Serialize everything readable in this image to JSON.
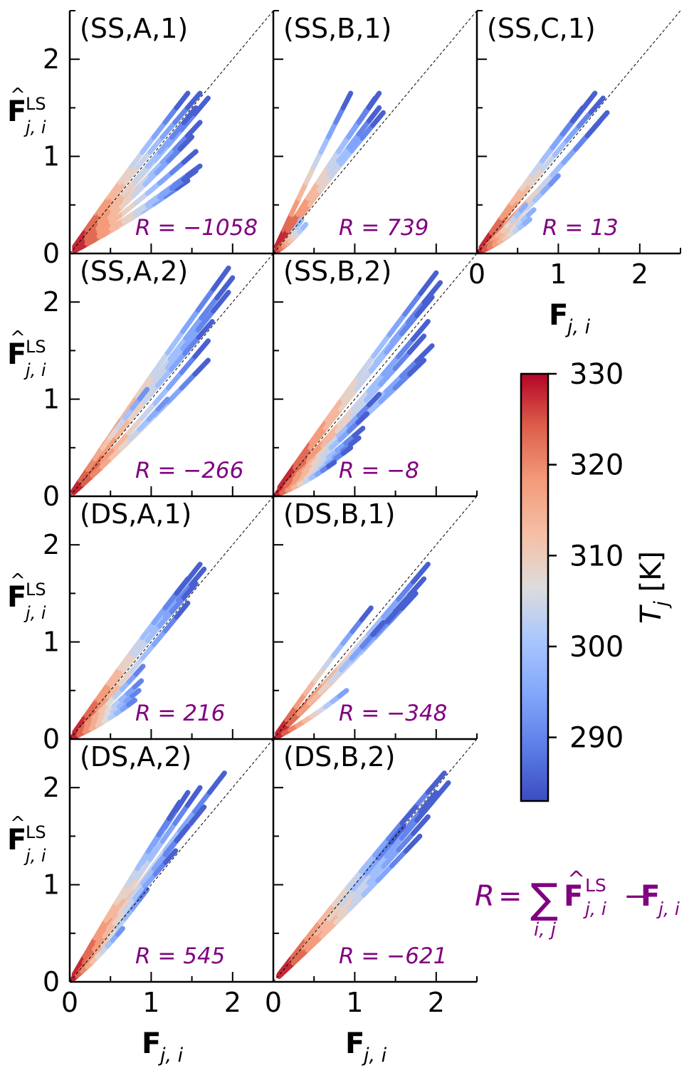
{
  "figure": {
    "x_axis_label": "F",
    "x_axis_label_sub": "j, i",
    "y_axis_label": "F",
    "y_axis_label_sup": "LS",
    "y_axis_label_sub": "j, i",
    "formula": {
      "lhs": "R",
      "eq": "=",
      "sum": "∑",
      "sum_sub": "i, j",
      "term1": "F",
      "term1_sup": "LS",
      "term1_sub": "j, i",
      "minus": "−",
      "term2": "F",
      "term2_sub": "j, i"
    },
    "colors": {
      "annotation": "#800080",
      "cold": "#3b4cc0",
      "neutral": "#dddddd",
      "hot": "#b40426"
    }
  },
  "chart_data": {
    "type": "scatter",
    "xlim": [
      0,
      2.5
    ],
    "ylim": [
      0,
      2.5
    ],
    "x_ticks": [
      0,
      1,
      2
    ],
    "y_ticks": [
      0,
      1,
      2
    ],
    "reference_line": "y = x",
    "grid": false,
    "panels": [
      {
        "id": "SS-A-1",
        "label": "(SS,A,1)",
        "r_label": "R = −1058",
        "R": -1058,
        "x_tick_labels": false,
        "rays": [
          [
            1.45,
            1.65,
            1
          ],
          [
            1.6,
            1.65,
            1
          ],
          [
            1.7,
            1.6,
            1
          ],
          [
            1.55,
            1.5,
            1
          ],
          [
            1.6,
            1.35,
            1
          ],
          [
            1.5,
            1.2,
            1
          ],
          [
            1.55,
            1.05,
            1
          ],
          [
            1.6,
            0.9,
            1
          ],
          [
            1.45,
            0.75,
            1
          ],
          [
            1.55,
            0.85,
            1
          ]
        ]
      },
      {
        "id": "SS-B-1",
        "label": "(SS,B,1)",
        "r_label": "R = 739",
        "R": 739,
        "x_tick_labels": false,
        "rays": [
          [
            0.95,
            1.65,
            1
          ],
          [
            1.25,
            1.6,
            1
          ],
          [
            1.3,
            1.5,
            1
          ],
          [
            1.2,
            1.3,
            1
          ],
          [
            1.35,
            1.45,
            1
          ],
          [
            1.3,
            1.65,
            1
          ],
          [
            0.35,
            0.35,
            0.7
          ],
          [
            0.4,
            0.3,
            0.7
          ]
        ]
      },
      {
        "id": "SS-C-1",
        "label": "(SS,C,1)",
        "r_label": "R = 13",
        "R": 13,
        "x_tick_labels": true,
        "rays": [
          [
            1.45,
            1.65,
            1
          ],
          [
            1.55,
            1.6,
            1
          ],
          [
            1.3,
            1.5,
            1
          ],
          [
            1.6,
            1.45,
            1
          ],
          [
            1.5,
            1.35,
            1
          ],
          [
            1.0,
            0.8,
            0.85
          ],
          [
            0.6,
            0.5,
            0.75
          ],
          [
            0.7,
            0.45,
            0.75
          ],
          [
            0.65,
            0.35,
            0.75
          ]
        ]
      },
      {
        "id": "SS-A-2",
        "label": "(SS,A,2)",
        "r_label": "R = −266",
        "R": -266,
        "x_tick_labels": false,
        "rays": [
          [
            1.95,
            2.35,
            1
          ],
          [
            2.0,
            2.25,
            1
          ],
          [
            1.95,
            2.1,
            1
          ],
          [
            1.75,
            1.8,
            1
          ],
          [
            1.7,
            1.6,
            1
          ],
          [
            1.7,
            1.4,
            1
          ],
          [
            0.95,
            1.1,
            0.85
          ],
          [
            1.2,
            1.0,
            0.85
          ]
        ]
      },
      {
        "id": "SS-B-2",
        "label": "(SS,B,2)",
        "r_label": "R = −8",
        "R": -8,
        "x_tick_labels": false,
        "rays": [
          [
            2.0,
            2.3,
            1
          ],
          [
            2.05,
            2.2,
            1
          ],
          [
            1.95,
            2.05,
            1
          ],
          [
            1.9,
            1.8,
            1
          ],
          [
            1.85,
            1.65,
            1
          ],
          [
            1.95,
            1.55,
            1
          ],
          [
            1.85,
            1.4,
            1
          ],
          [
            1.3,
            1.05,
            1
          ],
          [
            1.15,
            0.85,
            1
          ],
          [
            1.1,
            0.7,
            1
          ],
          [
            1.05,
            0.6,
            1
          ],
          [
            0.95,
            0.5,
            1
          ],
          [
            0.75,
            0.35,
            1
          ]
        ]
      },
      {
        "id": "DS-A-1",
        "label": "(DS,A,1)",
        "r_label": "R = 216",
        "R": 216,
        "x_tick_labels": false,
        "rays": [
          [
            1.6,
            1.8,
            1
          ],
          [
            1.65,
            1.75,
            1
          ],
          [
            1.45,
            1.65,
            1
          ],
          [
            1.55,
            1.6,
            1
          ],
          [
            1.45,
            1.4,
            1
          ],
          [
            0.9,
            0.75,
            0.9
          ],
          [
            0.88,
            0.6,
            0.9
          ],
          [
            0.85,
            0.5,
            0.9
          ],
          [
            0.8,
            0.4,
            0.9
          ]
        ]
      },
      {
        "id": "DS-B-1",
        "label": "(DS,B,1)",
        "r_label": "R = −348",
        "R": -348,
        "x_tick_labels": false,
        "rays": [
          [
            1.9,
            1.8,
            1
          ],
          [
            1.85,
            1.65,
            1
          ],
          [
            1.75,
            1.5,
            1
          ],
          [
            1.65,
            1.45,
            1
          ],
          [
            1.55,
            1.35,
            1
          ],
          [
            1.2,
            1.35,
            1
          ],
          [
            1.35,
            1.2,
            1
          ],
          [
            0.9,
            0.5,
            0.8
          ]
        ]
      },
      {
        "id": "DS-A-2",
        "label": "(DS,A,2)",
        "r_label": "R = 545",
        "R": 545,
        "x_tick_labels": true,
        "rays": [
          [
            1.9,
            2.15,
            1
          ],
          [
            1.6,
            2.0,
            1
          ],
          [
            1.45,
            1.95,
            1
          ],
          [
            1.35,
            1.85,
            1
          ],
          [
            1.65,
            1.8,
            1
          ],
          [
            1.45,
            1.6,
            1
          ],
          [
            1.3,
            1.35,
            1
          ],
          [
            0.95,
            0.95,
            0.9
          ],
          [
            0.65,
            0.55,
            0.85
          ]
        ]
      },
      {
        "id": "DS-B-2",
        "label": "(DS,B,2)",
        "r_label": "R = −621",
        "R": -621,
        "x_tick_labels": true,
        "rays": [
          [
            2.1,
            2.15,
            1
          ],
          [
            2.15,
            2.05,
            1
          ],
          [
            2.0,
            1.95,
            1
          ],
          [
            1.95,
            1.85,
            1
          ],
          [
            1.9,
            1.7,
            1
          ],
          [
            1.75,
            1.8,
            1
          ],
          [
            1.6,
            1.6,
            1
          ],
          [
            1.8,
            1.5,
            1
          ]
        ]
      }
    ],
    "colorbar": {
      "label": "T",
      "label_sub": "j",
      "unit": "[K]",
      "range": [
        283,
        330
      ],
      "ticks": [
        290,
        300,
        310,
        320,
        330
      ],
      "colormap": "coolwarm"
    }
  }
}
